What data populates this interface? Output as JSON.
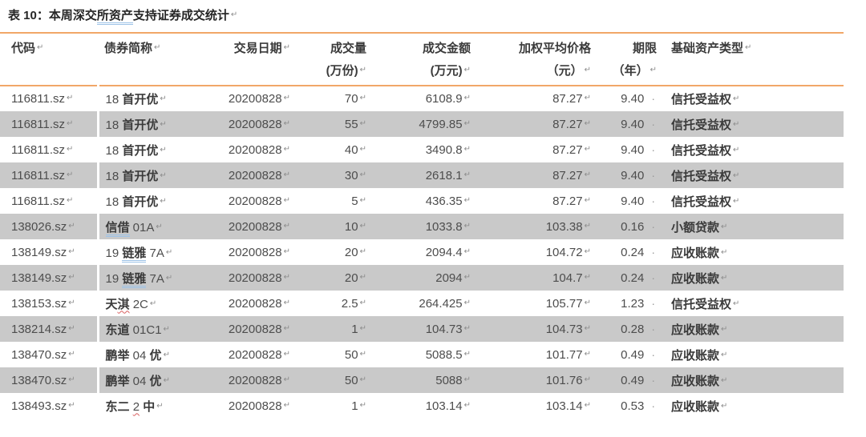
{
  "title": {
    "pre": "表 10：本周深交",
    "marked": "所资产",
    "post": "支持证券成交统计"
  },
  "marks": {
    "paragraph": "↵",
    "space_dot": "·"
  },
  "colors": {
    "rule_orange": "#f1a768",
    "stripe_gray": "#c9c9c9",
    "grammar_underline_blue": "#9dc3e8",
    "spelling_underline_red": "#d95f5f"
  },
  "columns": [
    {
      "key": "code",
      "line1": "代码",
      "line2": ""
    },
    {
      "key": "name",
      "line1": "债券简称",
      "line2": ""
    },
    {
      "key": "date",
      "line1": "交易日期",
      "line2": ""
    },
    {
      "key": "volume",
      "line1": "成交量",
      "line2": "(万份)"
    },
    {
      "key": "amount",
      "line1": "成交金额",
      "line2": "(万元)"
    },
    {
      "key": "price",
      "line1": "加权平均价格",
      "line2": "（元）"
    },
    {
      "key": "term",
      "line1": "期限",
      "line2": "（年）"
    },
    {
      "key": "asset",
      "line1": "基础资产类型",
      "line2": ""
    }
  ],
  "rows": [
    {
      "code": "116811.sz",
      "name_pre": "18 首开优",
      "name_mark": "",
      "mark_type": "",
      "name_post": "",
      "date": "20200828",
      "volume": "70",
      "amount": "6108.9",
      "price": "87.27",
      "term": "9.40",
      "asset": "信托受益权"
    },
    {
      "code": "116811.sz",
      "name_pre": "18 首开优",
      "name_mark": "",
      "mark_type": "",
      "name_post": "",
      "date": "20200828",
      "volume": "55",
      "amount": "4799.85",
      "price": "87.27",
      "term": "9.40",
      "asset": "信托受益权"
    },
    {
      "code": "116811.sz",
      "name_pre": "18 首开优",
      "name_mark": "",
      "mark_type": "",
      "name_post": "",
      "date": "20200828",
      "volume": "40",
      "amount": "3490.8",
      "price": "87.27",
      "term": "9.40",
      "asset": "信托受益权"
    },
    {
      "code": "116811.sz",
      "name_pre": "18 首开优",
      "name_mark": "",
      "mark_type": "",
      "name_post": "",
      "date": "20200828",
      "volume": "30",
      "amount": "2618.1",
      "price": "87.27",
      "term": "9.40",
      "asset": "信托受益权"
    },
    {
      "code": "116811.sz",
      "name_pre": "18 首开优",
      "name_mark": "",
      "mark_type": "",
      "name_post": "",
      "date": "20200828",
      "volume": "5",
      "amount": "436.35",
      "price": "87.27",
      "term": "9.40",
      "asset": "信托受益权"
    },
    {
      "code": "138026.sz",
      "name_pre": "",
      "name_mark": "信借",
      "mark_type": "blue",
      "name_post": " 01A",
      "date": "20200828",
      "volume": "10",
      "amount": "1033.8",
      "price": "103.38",
      "term": "0.16",
      "asset": "小额贷款"
    },
    {
      "code": "138149.sz",
      "name_pre": "19 ",
      "name_mark": "链雅",
      "mark_type": "blue",
      "name_post": " 7A",
      "date": "20200828",
      "volume": "20",
      "amount": "2094.4",
      "price": "104.72",
      "term": "0.24",
      "asset": "应收账款"
    },
    {
      "code": "138149.sz",
      "name_pre": "19 ",
      "name_mark": "链雅",
      "mark_type": "blue",
      "name_post": " 7A",
      "date": "20200828",
      "volume": "20",
      "amount": "2094",
      "price": "104.7",
      "term": "0.24",
      "asset": "应收账款"
    },
    {
      "code": "138153.sz",
      "name_pre": "天",
      "name_mark": "淇",
      "mark_type": "red",
      "name_post": " 2C",
      "date": "20200828",
      "volume": "2.5",
      "amount": "264.425",
      "price": "105.77",
      "term": "1.23",
      "asset": "信托受益权"
    },
    {
      "code": "138214.sz",
      "name_pre": "东道 01C1",
      "name_mark": "",
      "mark_type": "",
      "name_post": "",
      "date": "20200828",
      "volume": "1",
      "amount": "104.73",
      "price": "104.73",
      "term": "0.28",
      "asset": "应收账款"
    },
    {
      "code": "138470.sz",
      "name_pre": "鹏举 04 优",
      "name_mark": "",
      "mark_type": "",
      "name_post": "",
      "date": "20200828",
      "volume": "50",
      "amount": "5088.5",
      "price": "101.77",
      "term": "0.49",
      "asset": "应收账款"
    },
    {
      "code": "138470.sz",
      "name_pre": "鹏举 04 优",
      "name_mark": "",
      "mark_type": "",
      "name_post": "",
      "date": "20200828",
      "volume": "50",
      "amount": "5088",
      "price": "101.76",
      "term": "0.49",
      "asset": "应收账款"
    },
    {
      "code": "138493.sz",
      "name_pre": "东二 ",
      "name_mark": "2",
      "mark_type": "red",
      "name_post": " 中",
      "date": "20200828",
      "volume": "1",
      "amount": "103.14",
      "price": "103.14",
      "term": "0.53",
      "asset": "应收账款"
    }
  ]
}
